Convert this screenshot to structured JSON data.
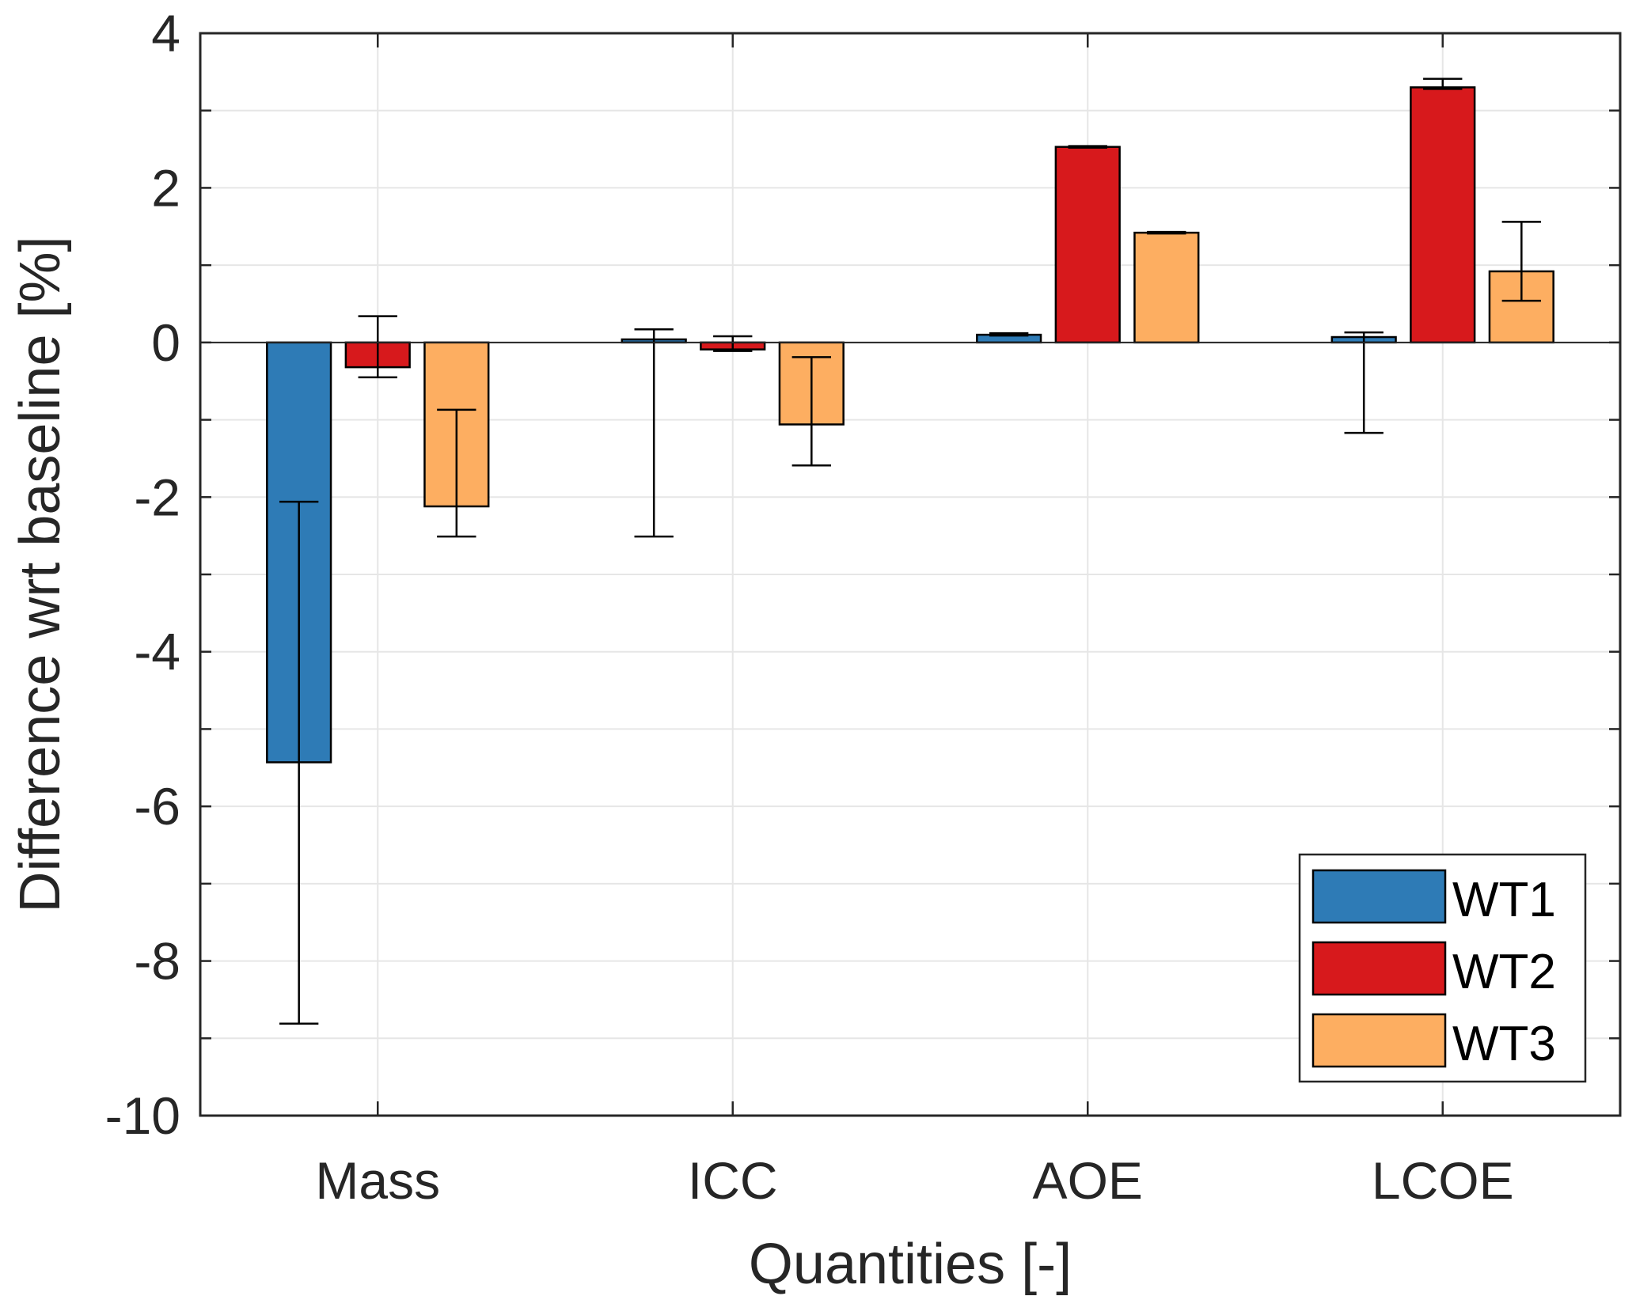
{
  "chart_data": {
    "type": "bar",
    "title": "",
    "xlabel": "Quantities [-]",
    "ylabel": "Difference wrt baseline [%]",
    "categories": [
      "Mass",
      "ICC",
      "AOE",
      "LCOE"
    ],
    "ylim": [
      -10,
      4
    ],
    "xlim": [
      0.5,
      4.5
    ],
    "yticks": [
      -10,
      -9,
      -8,
      -7,
      -6,
      -5,
      -4,
      -3,
      -2,
      -1,
      0,
      1,
      2,
      3,
      4
    ],
    "ytick_labels": [
      "-10",
      "",
      "-8",
      "",
      "-6",
      "",
      "-4",
      "",
      "-2",
      "",
      "0",
      "",
      "2",
      "",
      "4"
    ],
    "grid": true,
    "legend_position": "bottom-right",
    "series": [
      {
        "name": "WT1",
        "color": "#2e7bb6",
        "values": [
          -5.43,
          0.04,
          0.1,
          0.07
        ],
        "error_low": [
          -8.81,
          -2.51,
          0.09,
          -1.17
        ],
        "error_high": [
          -2.06,
          0.17,
          0.12,
          0.13
        ]
      },
      {
        "name": "WT2",
        "color": "#d7191c",
        "values": [
          -0.32,
          -0.09,
          2.53,
          3.3
        ],
        "error_low": [
          -0.45,
          -0.11,
          2.52,
          3.28
        ],
        "error_high": [
          0.34,
          0.08,
          2.54,
          3.41
        ]
      },
      {
        "name": "WT3",
        "color": "#fdae61",
        "values": [
          -2.12,
          -1.06,
          1.42,
          0.92
        ],
        "error_low": [
          -2.51,
          -1.59,
          1.41,
          0.54
        ],
        "error_high": [
          -0.87,
          -0.19,
          1.43,
          1.56
        ]
      }
    ]
  }
}
